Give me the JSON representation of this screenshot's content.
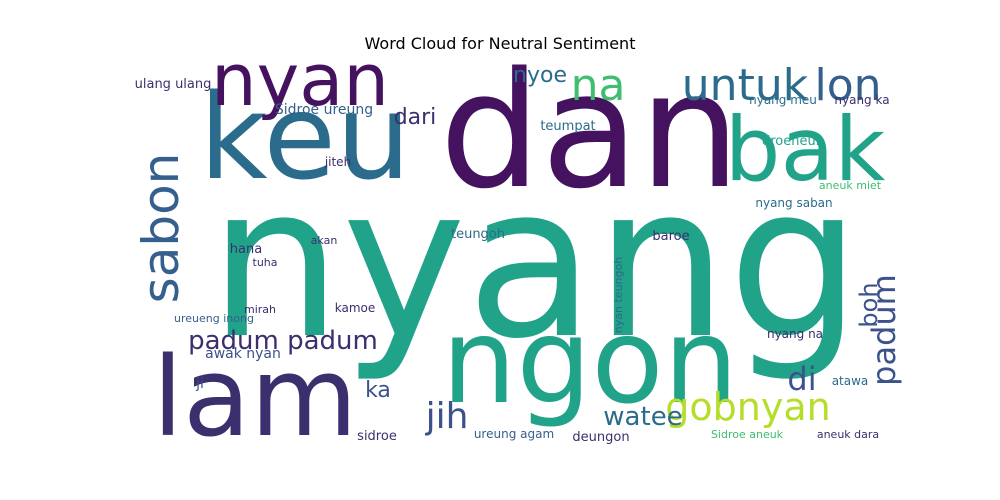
{
  "chart_data": {
    "type": "wordcloud",
    "title": "Word Cloud for Neutral Sentiment",
    "words": [
      {
        "text": "nyang",
        "weight": 100,
        "color": "#21a38a"
      },
      {
        "text": "dan",
        "weight": 80,
        "color": "#45125f"
      },
      {
        "text": "keu",
        "weight": 70,
        "color": "#2b6b8b"
      },
      {
        "text": "ngon",
        "weight": 62,
        "color": "#21a38a"
      },
      {
        "text": "lam",
        "weight": 58,
        "color": "#3b2f6e"
      },
      {
        "text": "bak",
        "weight": 46,
        "color": "#21a38a"
      },
      {
        "text": "nyan",
        "weight": 40,
        "color": "#45125f"
      },
      {
        "text": "sabon",
        "weight": 28,
        "color": "#355f8d"
      },
      {
        "text": "untuk",
        "weight": 24,
        "color": "#2b6b8b"
      },
      {
        "text": "lon",
        "weight": 24,
        "color": "#355f8d"
      },
      {
        "text": "na",
        "weight": 24,
        "color": "#3fbd70"
      },
      {
        "text": "gobnyan",
        "weight": 20,
        "color": "#b5de2b"
      },
      {
        "text": "jih",
        "weight": 18,
        "color": "#3b528b"
      },
      {
        "text": "padum",
        "weight": 18,
        "color": "#3b528b"
      },
      {
        "text": "padum padum",
        "weight": 14,
        "color": "#3b2f6e"
      },
      {
        "text": "di",
        "weight": 16,
        "color": "#3b528b"
      },
      {
        "text": "watee",
        "weight": 14,
        "color": "#2b6b8b"
      },
      {
        "text": "boh",
        "weight": 14,
        "color": "#3b528b"
      },
      {
        "text": "dari",
        "weight": 12,
        "color": "#3b2f6e"
      },
      {
        "text": "nyoe",
        "weight": 12,
        "color": "#2b6b8b"
      },
      {
        "text": "ka",
        "weight": 12,
        "color": "#3b528b"
      },
      {
        "text": "awak nyan",
        "weight": 9,
        "color": "#3b528b"
      },
      {
        "text": "Sidroe ureung",
        "weight": 9,
        "color": "#355f8d"
      },
      {
        "text": "ulang ulang",
        "weight": 8,
        "color": "#3b2f6e"
      },
      {
        "text": "teumpat",
        "weight": 8,
        "color": "#2b6b8b"
      },
      {
        "text": "droeneuh",
        "weight": 8,
        "color": "#21a38a"
      },
      {
        "text": "nyang saban",
        "weight": 7,
        "color": "#2b6b8b"
      },
      {
        "text": "nyang ka",
        "weight": 7,
        "color": "#3b2f6e"
      },
      {
        "text": "nyang meu",
        "weight": 7,
        "color": "#2b6b8b"
      },
      {
        "text": "teungoh",
        "weight": 7,
        "color": "#2b6b8b"
      },
      {
        "text": "baroe",
        "weight": 7,
        "color": "#3b2f6e"
      },
      {
        "text": "hana",
        "weight": 7,
        "color": "#3b2f6e"
      },
      {
        "text": "sidroe",
        "weight": 7,
        "color": "#3b2f6e"
      },
      {
        "text": "deungon",
        "weight": 7,
        "color": "#3b2f6e"
      },
      {
        "text": "ureung agam",
        "weight": 7,
        "color": "#355f8d"
      },
      {
        "text": "nyang na",
        "weight": 7,
        "color": "#3b2f6e"
      },
      {
        "text": "atawa",
        "weight": 6,
        "color": "#2b6b8b"
      },
      {
        "text": "jiteh",
        "weight": 6,
        "color": "#3b2f6e"
      },
      {
        "text": "ji",
        "weight": 6,
        "color": "#3b528b"
      },
      {
        "text": "kamoe",
        "weight": 6,
        "color": "#3b2f6e"
      },
      {
        "text": "ureueng inong",
        "weight": 5,
        "color": "#355f8d"
      },
      {
        "text": "nyan teungoh",
        "weight": 5,
        "color": "#2b6b8b"
      },
      {
        "text": "akan",
        "weight": 5,
        "color": "#3b2f6e"
      },
      {
        "text": "tuha",
        "weight": 5,
        "color": "#3b2f6e"
      },
      {
        "text": "mirah",
        "weight": 5,
        "color": "#3b2f6e"
      },
      {
        "text": "aneuk miet",
        "weight": 5,
        "color": "#3fbd70"
      },
      {
        "text": "Sidroe aneuk",
        "weight": 5,
        "color": "#3fbd70"
      },
      {
        "text": "aneuk dara",
        "weight": 5,
        "color": "#3b2f6e"
      }
    ]
  }
}
